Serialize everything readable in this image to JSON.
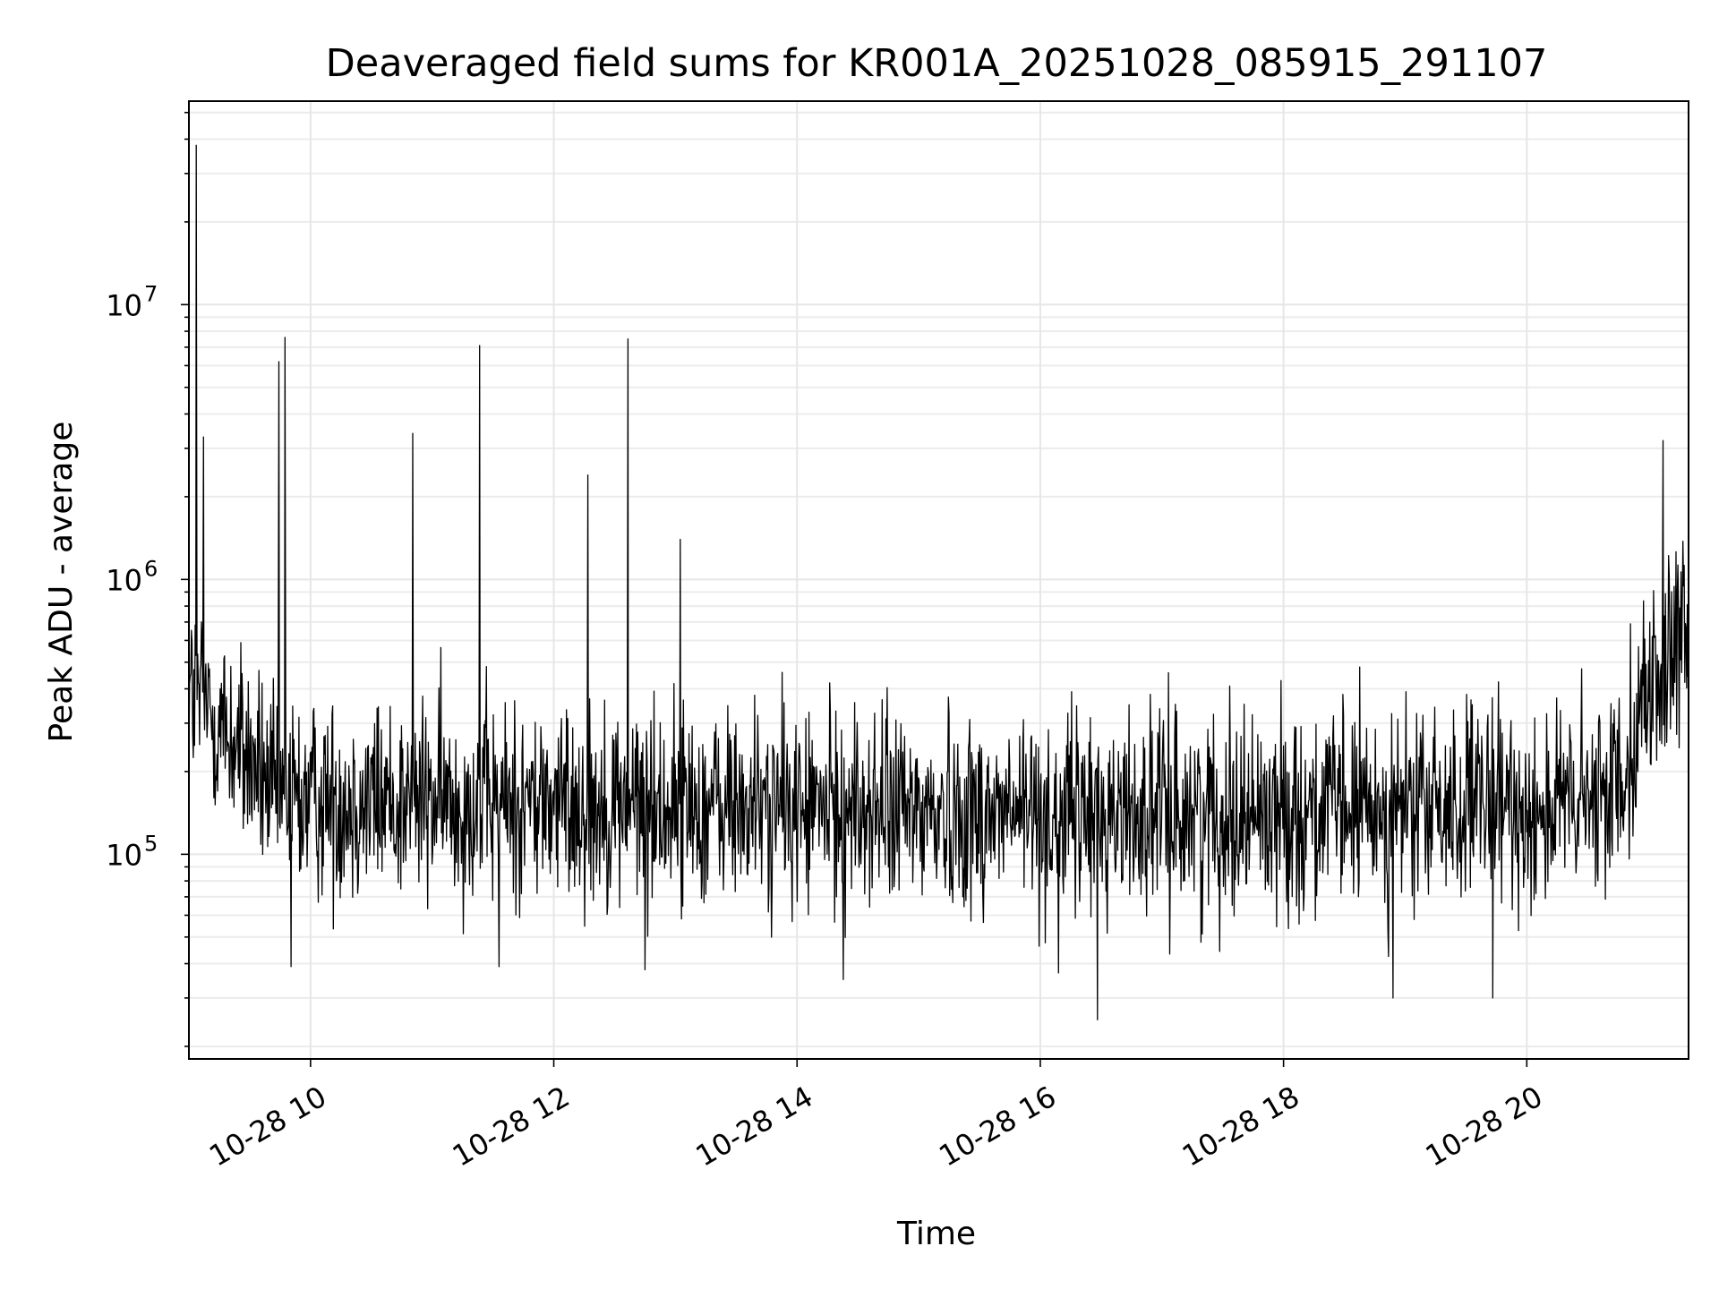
{
  "chart_data": {
    "type": "line",
    "title": "Deaveraged field sums for KR001A_20251028_085915_291107",
    "xlabel": "Time",
    "ylabel": "Peak ADU - average",
    "yscale": "log",
    "ylim": [
      18000,
      55000000
    ],
    "xlim_hours": [
      9.0,
      21.33
    ],
    "grid": true,
    "legend": "none",
    "x_ticks": [
      {
        "hour": 10,
        "label": "10-28 10"
      },
      {
        "hour": 12,
        "label": "10-28 12"
      },
      {
        "hour": 14,
        "label": "10-28 14"
      },
      {
        "hour": 16,
        "label": "10-28 16"
      },
      {
        "hour": 18,
        "label": "10-28 18"
      },
      {
        "hour": 20,
        "label": "10-28 20"
      }
    ],
    "y_ticks": [
      {
        "value": 100000,
        "base": "10",
        "exp": "5"
      },
      {
        "value": 1000000,
        "base": "10",
        "exp": "6"
      },
      {
        "value": 10000000,
        "base": "10",
        "exp": "7"
      }
    ],
    "baseline": [
      {
        "t": 9.0,
        "v": 400000
      },
      {
        "t": 9.5,
        "v": 220000
      },
      {
        "t": 9.7,
        "v": 160000
      },
      {
        "t": 13.0,
        "v": 150000
      },
      {
        "t": 16.0,
        "v": 140000
      },
      {
        "t": 19.0,
        "v": 145000
      },
      {
        "t": 20.6,
        "v": 150000
      },
      {
        "t": 20.8,
        "v": 220000
      },
      {
        "t": 21.0,
        "v": 400000
      },
      {
        "t": 21.33,
        "v": 600000
      }
    ],
    "spikes": [
      {
        "t": 9.06,
        "v": 38000000
      },
      {
        "t": 9.12,
        "v": 3300000
      },
      {
        "t": 9.74,
        "v": 6200000
      },
      {
        "t": 9.79,
        "v": 7600000
      },
      {
        "t": 10.84,
        "v": 3400000
      },
      {
        "t": 11.39,
        "v": 7100000
      },
      {
        "t": 12.28,
        "v": 2400000
      },
      {
        "t": 12.61,
        "v": 7500000
      },
      {
        "t": 13.04,
        "v": 1400000
      },
      {
        "t": 21.12,
        "v": 3200000
      }
    ],
    "dips": [
      {
        "t": 9.84,
        "v": 39000
      },
      {
        "t": 11.55,
        "v": 39000
      },
      {
        "t": 12.75,
        "v": 38000
      },
      {
        "t": 14.38,
        "v": 35000
      },
      {
        "t": 16.15,
        "v": 37000
      },
      {
        "t": 16.47,
        "v": 25000
      },
      {
        "t": 18.9,
        "v": 30000
      },
      {
        "t": 19.72,
        "v": 30000
      }
    ],
    "noise_samples": 2400,
    "noise_log10_amplitude": 0.33
  }
}
